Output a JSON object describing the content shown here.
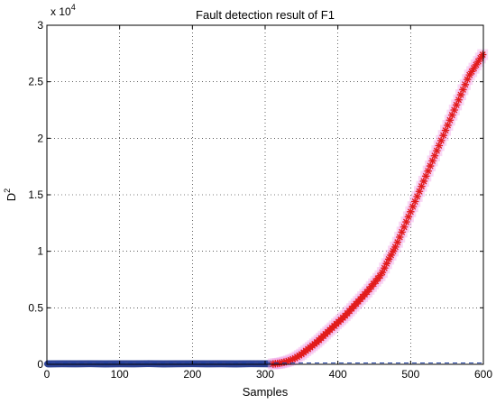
{
  "chart_data": {
    "type": "scatter",
    "title": "Fault detection result of F1",
    "xlabel": "Samples",
    "ylabel_base": "D",
    "ylabel_sup": "2",
    "xlim": [
      0,
      600
    ],
    "ylim": [
      0,
      30000
    ],
    "x_ticks": [
      0,
      100,
      200,
      300,
      400,
      500,
      600
    ],
    "x_tick_labels": [
      "0",
      "100",
      "200",
      "300",
      "400",
      "500",
      "600"
    ],
    "y_ticks": [
      0,
      5000,
      10000,
      15000,
      20000,
      25000,
      30000
    ],
    "y_tick_labels": [
      "0",
      "0.5",
      "1",
      "1.5",
      "2",
      "2.5",
      "3"
    ],
    "y_multiplier_base": "x 10",
    "y_multiplier_exp": "4",
    "grid": true,
    "threshold": 120,
    "colors": {
      "normal": "#3a50a8",
      "fault": "#e21b1b",
      "halo": "#f2a6e6",
      "threshold_line": "#1f3fa0",
      "grid": "#000000"
    },
    "series": [
      {
        "x": [
          1,
          20,
          40,
          60,
          80,
          100,
          120,
          140,
          160,
          180,
          200,
          220,
          240,
          260,
          280,
          300,
          310
        ],
        "y": [
          40,
          50,
          45,
          55,
          40,
          50,
          45,
          60,
          40,
          50,
          55,
          45,
          50,
          40,
          55,
          50,
          45
        ]
      },
      {
        "x": [
          311,
          320,
          330,
          340,
          350,
          360,
          370,
          380,
          390,
          400,
          410,
          420,
          430,
          440,
          450,
          460,
          470,
          480,
          490,
          500,
          510,
          520,
          530,
          540,
          550,
          560,
          570,
          580,
          590,
          600
        ],
        "y": [
          30,
          100,
          250,
          500,
          900,
          1400,
          1900,
          2500,
          3100,
          3700,
          4300,
          5000,
          5700,
          6400,
          7200,
          8000,
          9300,
          10500,
          12000,
          13500,
          15000,
          16500,
          18000,
          19500,
          21000,
          22500,
          24000,
          25500,
          26500,
          27500
        ]
      }
    ]
  }
}
